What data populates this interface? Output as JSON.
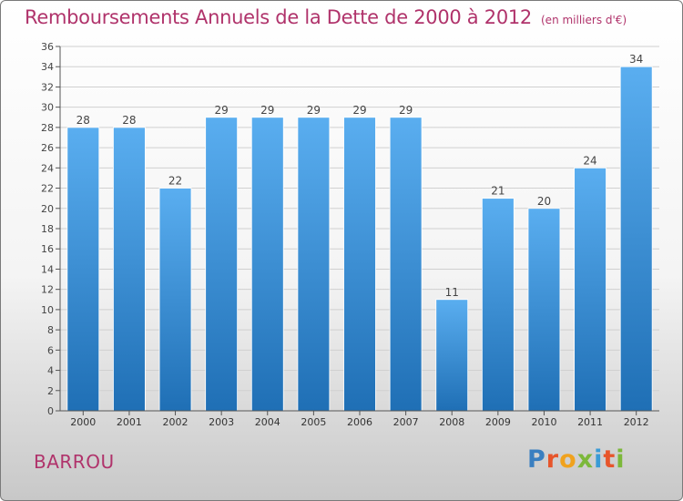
{
  "title": "Remboursements Annuels de la Dette de 2000 à 2012",
  "subtitle": "(en milliers d'€)",
  "city": "BARROU",
  "brand": {
    "text": "Proxiti",
    "letters": [
      {
        "ch": "P",
        "color": "#3a7fc0"
      },
      {
        "ch": "r",
        "color": "#e7552b"
      },
      {
        "ch": "o",
        "color": "#f0a21e"
      },
      {
        "ch": "x",
        "color": "#7cb83a"
      },
      {
        "ch": "i",
        "color": "#3a9bd6"
      },
      {
        "ch": "t",
        "color": "#e7552b"
      },
      {
        "ch": "i",
        "color": "#7cb83a"
      }
    ]
  },
  "colors": {
    "title": "#b0336b",
    "bar_top": "#5aaef0",
    "bar_bottom": "#1f6fb5",
    "grid": "#d0d0d0",
    "axis": "#555555"
  },
  "chart_data": {
    "type": "bar",
    "categories": [
      "2000",
      "2001",
      "2002",
      "2003",
      "2004",
      "2005",
      "2006",
      "2007",
      "2008",
      "2009",
      "2010",
      "2011",
      "2012"
    ],
    "values": [
      28,
      28,
      22,
      29,
      29,
      29,
      29,
      29,
      11,
      21,
      20,
      24,
      34
    ],
    "data_labels": [
      "28",
      "28",
      "22",
      "29",
      "29",
      "29",
      "29",
      "29",
      "11",
      "21",
      "20",
      "24",
      "34"
    ],
    "ylim": [
      0,
      36
    ],
    "yticks": [
      0,
      2,
      4,
      6,
      8,
      10,
      12,
      14,
      16,
      18,
      20,
      22,
      24,
      26,
      28,
      30,
      32,
      34,
      36
    ],
    "grid": true,
    "xlabel": "",
    "ylabel": ""
  }
}
